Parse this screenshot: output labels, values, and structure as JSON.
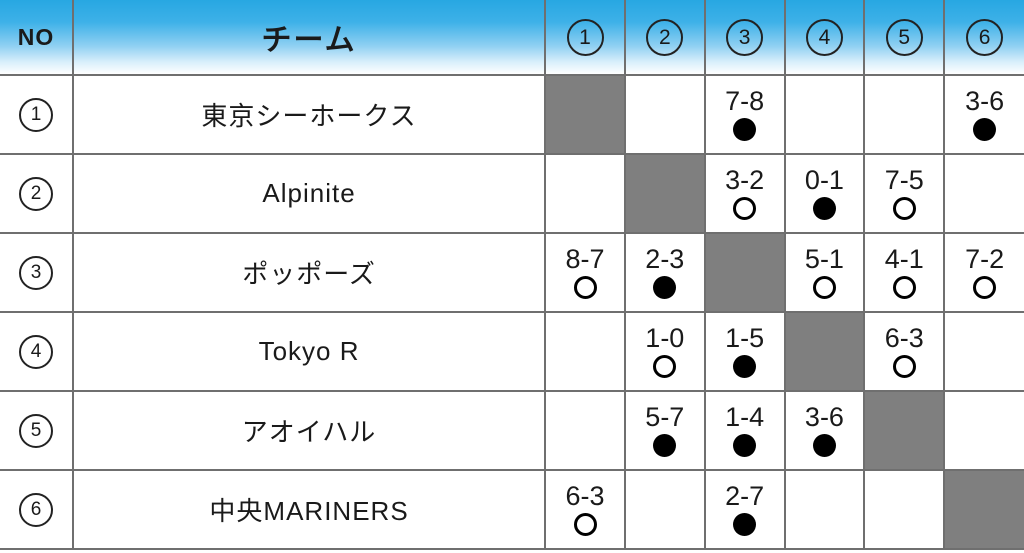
{
  "table": {
    "headers": {
      "no": "NO",
      "team": "チーム",
      "cols": [
        "1",
        "2",
        "3",
        "4",
        "5",
        "6"
      ]
    },
    "legend": {
      "win_mark": "○",
      "loss_mark": "●"
    },
    "rows": [
      {
        "no": "1",
        "team": "東京シーホークス",
        "cells": [
          {
            "self": true
          },
          {},
          {
            "score": "7-8",
            "mark": "●"
          },
          {},
          {},
          {
            "score": "3-6",
            "mark": "●"
          }
        ]
      },
      {
        "no": "2",
        "team": "Alpinite",
        "cells": [
          {},
          {
            "self": true
          },
          {
            "score": "3-2",
            "mark": "○"
          },
          {
            "score": "0-1",
            "mark": "●"
          },
          {
            "score": "7-5",
            "mark": "○"
          },
          {}
        ]
      },
      {
        "no": "3",
        "team": "ポッポーズ",
        "cells": [
          {
            "score": "8-7",
            "mark": "○"
          },
          {
            "score": "2-3",
            "mark": "●"
          },
          {
            "self": true
          },
          {
            "score": "5-1",
            "mark": "○"
          },
          {
            "score": "4-1",
            "mark": "○"
          },
          {
            "score": "7-2",
            "mark": "○"
          }
        ]
      },
      {
        "no": "4",
        "team": "Tokyo R",
        "cells": [
          {},
          {
            "score": "1-0",
            "mark": "○"
          },
          {
            "score": "1-5",
            "mark": "●"
          },
          {
            "self": true
          },
          {
            "score": "6-3",
            "mark": "○"
          },
          {}
        ]
      },
      {
        "no": "5",
        "team": "アオイハル",
        "cells": [
          {},
          {
            "score": "5-7",
            "mark": "●"
          },
          {
            "score": "1-4",
            "mark": "●"
          },
          {
            "score": "3-6",
            "mark": "●"
          },
          {
            "self": true
          },
          {}
        ]
      },
      {
        "no": "6",
        "team": "中央MARINERS",
        "cells": [
          {
            "score": "6-3",
            "mark": "○"
          },
          {},
          {
            "score": "2-7",
            "mark": "●"
          },
          {},
          {},
          {
            "self": true
          }
        ]
      }
    ],
    "colors": {
      "header_gradient_top": "#27a7e2",
      "header_gradient_bottom": "#ffffff",
      "diagonal_fill": "#7f7f7f",
      "grid_border": "#6f6f6f",
      "mark_color": "#000000"
    }
  }
}
